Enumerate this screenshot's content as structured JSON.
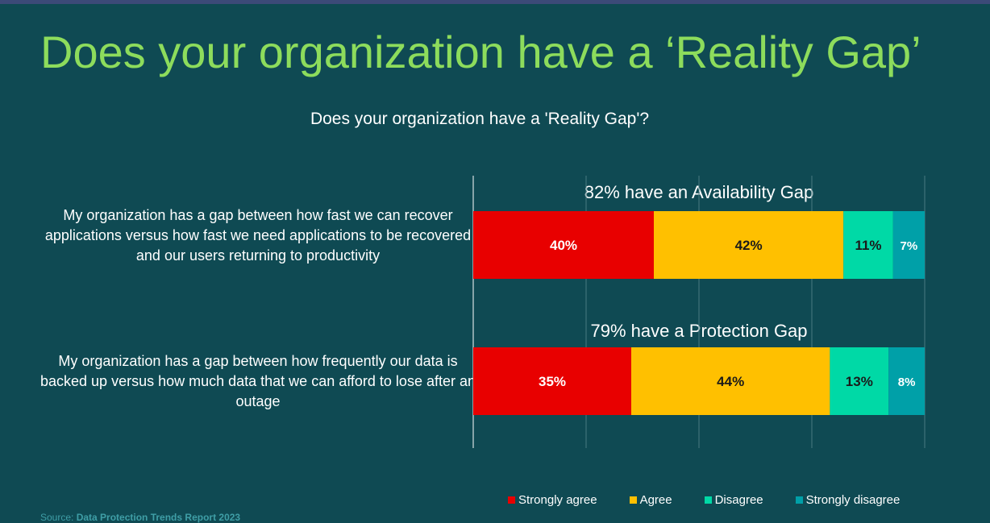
{
  "slide": {
    "title": "Does your organization have a ‘Reality Gap’",
    "source_prefix": "Source:",
    "source_name": "Data Protection Trends Report 2023"
  },
  "chart_data": {
    "type": "bar",
    "orientation": "horizontal",
    "stacked": true,
    "title": "Does your organization have a 'Reality Gap'?",
    "categories": [
      "My organization has a gap between how fast we can recover applications versus how fast we need applications to be recovered and our users returning to productivity",
      "My organization has a gap between how frequently our data is backed up versus how much data that we can afford to lose after an outage"
    ],
    "category_annotations": [
      "82% have an Availability Gap",
      "79% have a Protection Gap"
    ],
    "series": [
      {
        "name": "Strongly agree",
        "values": [
          40,
          35
        ],
        "labels": [
          "40%",
          "35%"
        ],
        "color": "#e80000"
      },
      {
        "name": "Agree",
        "values": [
          42,
          44
        ],
        "labels": [
          "42%",
          "44%"
        ],
        "color": "#ffc000"
      },
      {
        "name": "Disagree",
        "values": [
          11,
          13
        ],
        "labels": [
          "11%",
          "13%"
        ],
        "color": "#00d9a6"
      },
      {
        "name": "Strongly disagree",
        "values": [
          7,
          8
        ],
        "labels": [
          "7%",
          "8%"
        ],
        "color": "#00a0a8"
      }
    ],
    "xlim": [
      0,
      100
    ],
    "grid": true,
    "legend_position": "bottom-right",
    "label_color": "#ffffff",
    "dark_label_color": "#1a1a1a"
  }
}
